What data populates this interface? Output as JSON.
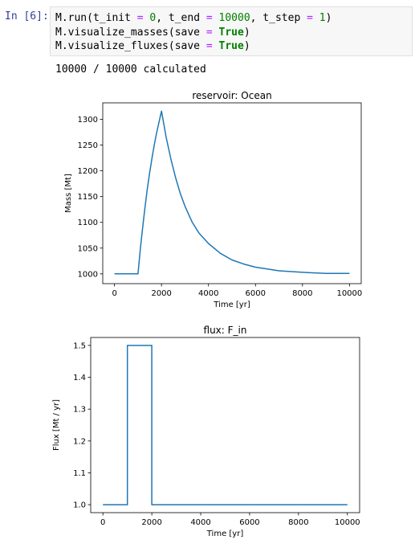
{
  "cell": {
    "prompt": "In [6]:",
    "lines": [
      [
        [
          "M.run(t_init ",
          ""
        ],
        [
          "=",
          "op"
        ],
        [
          " ",
          ""
        ],
        [
          "0",
          "num"
        ],
        [
          ", t_end ",
          ""
        ],
        [
          "=",
          "op"
        ],
        [
          " ",
          ""
        ],
        [
          "10000",
          "num"
        ],
        [
          ", t_step ",
          ""
        ],
        [
          "=",
          "op"
        ],
        [
          " ",
          ""
        ],
        [
          "1",
          "num"
        ],
        [
          ")",
          ""
        ]
      ],
      [
        [
          "M.visualize_masses(save ",
          ""
        ],
        [
          "=",
          "op"
        ],
        [
          " ",
          ""
        ],
        [
          "True",
          "kw"
        ],
        [
          ")",
          ""
        ]
      ],
      [
        [
          "M.visualize_fluxes(save ",
          ""
        ],
        [
          "=",
          "op"
        ],
        [
          " ",
          ""
        ],
        [
          "True",
          "kw"
        ],
        [
          ")",
          ""
        ]
      ]
    ],
    "output": "10000 / 10000 calculated"
  },
  "chart_data": [
    {
      "type": "line",
      "title": "reservoir: Ocean",
      "xlabel": "Time [yr]",
      "ylabel": "Mass [Mt]",
      "xlim": [
        -500,
        10500
      ],
      "ylim": [
        981,
        1332
      ],
      "xticks": [
        0,
        2000,
        4000,
        6000,
        8000,
        10000
      ],
      "yticks": [
        1000,
        1050,
        1100,
        1150,
        1200,
        1250,
        1300
      ],
      "color": "#1f77b4",
      "grid": false,
      "series": [
        {
          "x": [
            0,
            1000,
            1100,
            1200,
            1300,
            1400,
            1500,
            1600,
            1700,
            1800,
            1900,
            2000,
            2200,
            2400,
            2600,
            2800,
            3000,
            3300,
            3600,
            4000,
            4500,
            5000,
            5500,
            6000,
            7000,
            8000,
            9000,
            10000
          ],
          "y": [
            1000,
            1000,
            1048,
            1091,
            1130,
            1166,
            1197,
            1226,
            1252,
            1275,
            1296,
            1316,
            1265,
            1223,
            1187,
            1156,
            1131,
            1101,
            1079,
            1059,
            1040,
            1027,
            1019,
            1013,
            1006,
            1003,
            1001,
            1001
          ]
        }
      ]
    },
    {
      "type": "line",
      "title": "flux: F_in",
      "xlabel": "Time [yr]",
      "ylabel": "Flux [Mt / yr]",
      "xlim": [
        -500,
        10500
      ],
      "ylim": [
        0.975,
        1.525
      ],
      "xticks": [
        0,
        2000,
        4000,
        6000,
        8000,
        10000
      ],
      "yticks": [
        1.0,
        1.1,
        1.2,
        1.3,
        1.4,
        1.5
      ],
      "color": "#1f77b4",
      "grid": false,
      "series": [
        {
          "x": [
            0,
            1000,
            1000,
            2000,
            2000,
            10000
          ],
          "y": [
            1.0,
            1.0,
            1.5,
            1.5,
            1.0,
            1.0
          ]
        }
      ]
    }
  ]
}
